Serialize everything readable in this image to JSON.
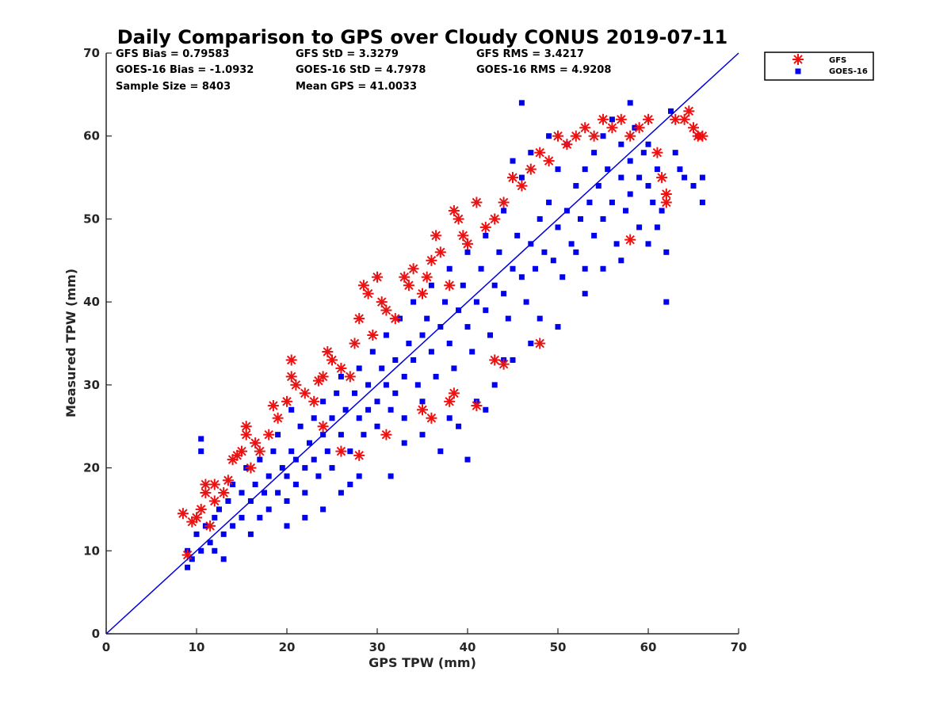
{
  "chart_data": {
    "type": "scatter",
    "title": "Daily Comparison to GPS over Cloudy CONUS 2019-07-11",
    "xlabel": "GPS TPW (mm)",
    "ylabel": "Measured TPW (mm)",
    "xlim": [
      0,
      70
    ],
    "ylim": [
      0,
      70
    ],
    "x_ticks": [
      "0",
      "10",
      "20",
      "30",
      "40",
      "50",
      "60",
      "70"
    ],
    "y_ticks": [
      "0",
      "10",
      "20",
      "30",
      "40",
      "50",
      "60",
      "70"
    ],
    "grid": false,
    "legend_position": "top-right (outside plot)",
    "stats": {
      "gfs_bias": "GFS Bias = 0.79583",
      "goes_bias": "GOES-16 Bias = -1.0932",
      "sample_size": "Sample Size = 8403",
      "gfs_std": "GFS StD = 3.3279",
      "goes_std": "GOES-16 StD = 4.7978",
      "mean_gps": "Mean GPS = 41.0033",
      "gfs_rms": "GFS RMS = 3.4217",
      "goes_rms": "GOES-16 RMS = 4.9208"
    },
    "reference_line": {
      "x": [
        0,
        70
      ],
      "y": [
        0,
        70
      ],
      "color": "#0000dd"
    },
    "series": [
      {
        "name": "GOES-16",
        "marker": "square",
        "color": "#0000ee",
        "points": [
          [
            9,
            8
          ],
          [
            9,
            10
          ],
          [
            9.5,
            9
          ],
          [
            10,
            12
          ],
          [
            10.5,
            10
          ],
          [
            11,
            13
          ],
          [
            10.5,
            22
          ],
          [
            10.5,
            23.5
          ],
          [
            11.5,
            11
          ],
          [
            12,
            14
          ],
          [
            12,
            10
          ],
          [
            12.5,
            15
          ],
          [
            13,
            12
          ],
          [
            13,
            9
          ],
          [
            13.5,
            16
          ],
          [
            14,
            13
          ],
          [
            14,
            18
          ],
          [
            15,
            14
          ],
          [
            15,
            17
          ],
          [
            15.5,
            20
          ],
          [
            16,
            12
          ],
          [
            16,
            16
          ],
          [
            16.5,
            18
          ],
          [
            17,
            14
          ],
          [
            17,
            21
          ],
          [
            17.5,
            17
          ],
          [
            18,
            15
          ],
          [
            18,
            19
          ],
          [
            18.5,
            22
          ],
          [
            19,
            17
          ],
          [
            19,
            24
          ],
          [
            19.5,
            20
          ],
          [
            20,
            16
          ],
          [
            20,
            19
          ],
          [
            20.5,
            22
          ],
          [
            20.5,
            27
          ],
          [
            21,
            18
          ],
          [
            21,
            21
          ],
          [
            21.5,
            25
          ],
          [
            22,
            20
          ],
          [
            22,
            17
          ],
          [
            22.5,
            23
          ],
          [
            23,
            26
          ],
          [
            23,
            21
          ],
          [
            23.5,
            19
          ],
          [
            24,
            24
          ],
          [
            24,
            28
          ],
          [
            24.5,
            22
          ],
          [
            25,
            26
          ],
          [
            25,
            20
          ],
          [
            25.5,
            29
          ],
          [
            26,
            24
          ],
          [
            26,
            31
          ],
          [
            26.5,
            27
          ],
          [
            27,
            22
          ],
          [
            27,
            18
          ],
          [
            27.5,
            29
          ],
          [
            28,
            26
          ],
          [
            28,
            32
          ],
          [
            28.5,
            24
          ],
          [
            29,
            30
          ],
          [
            29,
            27
          ],
          [
            29.5,
            34
          ],
          [
            30,
            28
          ],
          [
            30,
            25
          ],
          [
            30.5,
            32
          ],
          [
            31,
            30
          ],
          [
            31,
            36
          ],
          [
            31.5,
            27
          ],
          [
            31.5,
            19
          ],
          [
            32,
            33
          ],
          [
            32,
            29
          ],
          [
            32.5,
            38
          ],
          [
            33,
            31
          ],
          [
            33,
            26
          ],
          [
            33.5,
            35
          ],
          [
            34,
            33
          ],
          [
            34,
            40
          ],
          [
            34.5,
            30
          ],
          [
            35,
            36
          ],
          [
            35,
            28
          ],
          [
            35.5,
            38
          ],
          [
            36,
            34
          ],
          [
            36,
            42
          ],
          [
            36.5,
            31
          ],
          [
            37,
            37
          ],
          [
            37,
            22
          ],
          [
            37.5,
            40
          ],
          [
            38,
            35
          ],
          [
            38,
            44
          ],
          [
            38.5,
            32
          ],
          [
            39,
            39
          ],
          [
            39,
            25
          ],
          [
            39.5,
            42
          ],
          [
            40,
            37
          ],
          [
            40,
            46
          ],
          [
            40.5,
            34
          ],
          [
            41,
            40
          ],
          [
            41,
            28
          ],
          [
            41.5,
            44
          ],
          [
            42,
            39
          ],
          [
            42,
            48
          ],
          [
            42.5,
            36
          ],
          [
            43,
            42
          ],
          [
            43,
            30
          ],
          [
            43.5,
            46
          ],
          [
            44,
            41
          ],
          [
            44,
            51
          ],
          [
            44.5,
            38
          ],
          [
            45,
            44
          ],
          [
            45,
            33
          ],
          [
            45.5,
            48
          ],
          [
            46,
            43
          ],
          [
            46,
            55
          ],
          [
            46.5,
            40
          ],
          [
            47,
            47
          ],
          [
            47,
            58
          ],
          [
            47.5,
            44
          ],
          [
            48,
            50
          ],
          [
            48,
            38
          ],
          [
            48.5,
            46
          ],
          [
            49,
            52
          ],
          [
            49,
            60
          ],
          [
            49.5,
            45
          ],
          [
            50,
            49
          ],
          [
            50,
            56
          ],
          [
            50.5,
            43
          ],
          [
            51,
            51
          ],
          [
            51,
            59
          ],
          [
            51.5,
            47
          ],
          [
            52,
            54
          ],
          [
            52,
            46
          ],
          [
            52.5,
            50
          ],
          [
            53,
            56
          ],
          [
            53,
            44
          ],
          [
            53.5,
            52
          ],
          [
            54,
            58
          ],
          [
            54,
            48
          ],
          [
            54.5,
            54
          ],
          [
            55,
            60
          ],
          [
            55,
            50
          ],
          [
            55.5,
            56
          ],
          [
            56,
            52
          ],
          [
            56,
            62
          ],
          [
            56.5,
            47
          ],
          [
            57,
            55
          ],
          [
            57,
            59
          ],
          [
            57.5,
            51
          ],
          [
            58,
            57
          ],
          [
            58,
            53
          ],
          [
            58.5,
            61
          ],
          [
            59,
            55
          ],
          [
            59,
            49
          ],
          [
            59.5,
            58
          ],
          [
            60,
            54
          ],
          [
            60,
            59
          ],
          [
            60.5,
            52
          ],
          [
            61,
            56
          ],
          [
            61,
            49
          ],
          [
            61.5,
            51
          ],
          [
            62,
            40
          ],
          [
            62,
            46
          ],
          [
            62.5,
            63
          ],
          [
            63,
            58
          ],
          [
            63.5,
            56
          ],
          [
            64,
            55
          ],
          [
            65,
            54
          ],
          [
            65.5,
            60
          ],
          [
            66,
            52
          ],
          [
            66,
            55
          ],
          [
            20,
            13
          ],
          [
            22,
            14
          ],
          [
            24,
            15
          ],
          [
            26,
            17
          ],
          [
            28,
            19
          ],
          [
            33,
            23
          ],
          [
            35,
            24
          ],
          [
            38,
            26
          ],
          [
            40,
            21
          ],
          [
            42,
            27
          ],
          [
            44,
            33
          ],
          [
            47,
            35
          ],
          [
            50,
            37
          ],
          [
            53,
            41
          ],
          [
            55,
            44
          ],
          [
            57,
            45
          ],
          [
            60,
            47
          ],
          [
            58,
            64
          ],
          [
            46,
            64
          ],
          [
            45,
            57
          ]
        ]
      },
      {
        "name": "GFS",
        "marker": "asterisk",
        "color": "#ee1111",
        "points": [
          [
            8.5,
            14.5
          ],
          [
            9,
            9.5
          ],
          [
            9.5,
            13.5
          ],
          [
            10,
            14
          ],
          [
            10.5,
            15
          ],
          [
            11,
            18
          ],
          [
            11,
            17
          ],
          [
            11.5,
            13
          ],
          [
            12,
            16
          ],
          [
            12,
            18
          ],
          [
            13,
            17
          ],
          [
            13.5,
            18.5
          ],
          [
            14,
            21
          ],
          [
            14.5,
            21.5
          ],
          [
            15,
            22
          ],
          [
            15.5,
            24
          ],
          [
            15.5,
            25
          ],
          [
            16,
            20
          ],
          [
            16.5,
            23
          ],
          [
            17,
            22
          ],
          [
            18,
            24
          ],
          [
            18.5,
            27.5
          ],
          [
            19,
            26
          ],
          [
            20,
            28
          ],
          [
            20.5,
            31
          ],
          [
            20.5,
            33
          ],
          [
            21,
            30
          ],
          [
            22,
            29
          ],
          [
            23,
            28
          ],
          [
            23.5,
            30.5
          ],
          [
            24,
            31
          ],
          [
            24.5,
            34
          ],
          [
            25,
            33
          ],
          [
            26,
            32
          ],
          [
            27,
            31
          ],
          [
            27.5,
            35
          ],
          [
            28,
            38
          ],
          [
            28.5,
            42
          ],
          [
            29,
            41
          ],
          [
            29.5,
            36
          ],
          [
            30,
            43
          ],
          [
            30.5,
            40
          ],
          [
            31,
            39
          ],
          [
            32,
            38
          ],
          [
            33,
            43
          ],
          [
            33.5,
            42
          ],
          [
            34,
            44
          ],
          [
            35,
            41
          ],
          [
            35.5,
            43
          ],
          [
            36,
            45
          ],
          [
            36.5,
            48
          ],
          [
            37,
            46
          ],
          [
            38,
            42
          ],
          [
            38.5,
            51
          ],
          [
            39,
            50
          ],
          [
            39.5,
            48
          ],
          [
            40,
            47
          ],
          [
            41,
            52
          ],
          [
            42,
            49
          ],
          [
            43,
            50
          ],
          [
            44,
            52
          ],
          [
            45,
            55
          ],
          [
            46,
            54
          ],
          [
            47,
            56
          ],
          [
            48,
            58
          ],
          [
            49,
            57
          ],
          [
            50,
            60
          ],
          [
            51,
            59
          ],
          [
            52,
            60
          ],
          [
            53,
            61
          ],
          [
            54,
            60
          ],
          [
            55,
            62
          ],
          [
            56,
            61
          ],
          [
            57,
            62
          ],
          [
            58,
            60
          ],
          [
            59,
            61
          ],
          [
            60,
            62
          ],
          [
            61,
            58
          ],
          [
            61.5,
            55
          ],
          [
            62,
            53
          ],
          [
            62,
            52
          ],
          [
            63,
            62
          ],
          [
            64,
            62
          ],
          [
            64.5,
            63
          ],
          [
            65,
            61
          ],
          [
            65.5,
            60
          ],
          [
            66,
            60
          ],
          [
            58,
            47.5
          ],
          [
            48,
            35
          ],
          [
            44,
            32.5
          ],
          [
            43,
            33
          ],
          [
            41,
            27.5
          ],
          [
            38,
            28
          ],
          [
            38.5,
            29
          ],
          [
            36,
            26
          ],
          [
            35,
            27
          ],
          [
            31,
            24
          ],
          [
            28,
            21.5
          ],
          [
            26,
            22
          ],
          [
            24,
            25
          ]
        ]
      }
    ]
  }
}
